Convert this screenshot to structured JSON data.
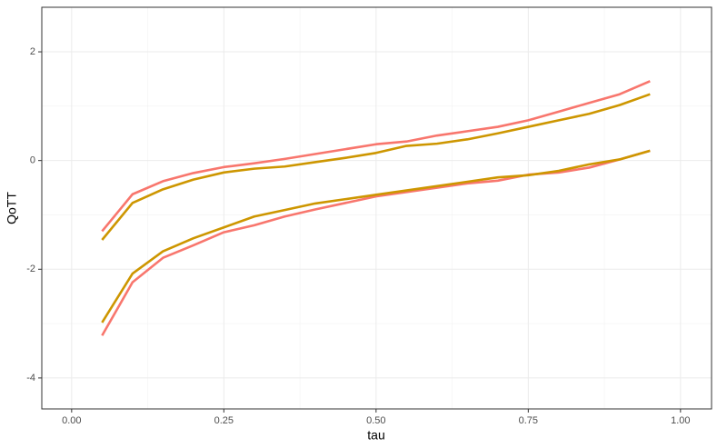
{
  "chart_data": {
    "type": "line",
    "x_label": "tau",
    "y_label": "QoTT",
    "x": [
      0.05,
      0.1,
      0.15,
      0.2,
      0.25,
      0.3,
      0.35,
      0.4,
      0.45,
      0.5,
      0.55,
      0.6,
      0.65,
      0.7,
      0.75,
      0.8,
      0.85,
      0.9,
      0.95
    ],
    "series": [
      {
        "color": "#F8766D",
        "values": [
          -1.3,
          -0.62,
          -0.38,
          -0.23,
          -0.12,
          -0.05,
          0.03,
          0.12,
          0.21,
          0.3,
          0.35,
          0.46,
          0.54,
          0.62,
          0.74,
          0.9,
          1.06,
          1.22,
          1.46
        ]
      },
      {
        "color": "#CD9600",
        "values": [
          -1.46,
          -0.78,
          -0.53,
          -0.35,
          -0.22,
          -0.15,
          -0.11,
          -0.03,
          0.05,
          0.14,
          0.27,
          0.31,
          0.39,
          0.5,
          0.62,
          0.74,
          0.86,
          1.02,
          1.22
        ]
      },
      {
        "color": "#F8766D",
        "values": [
          -3.22,
          -2.24,
          -1.79,
          -1.56,
          -1.32,
          -1.19,
          -1.03,
          -0.9,
          -0.78,
          -0.66,
          -0.58,
          -0.5,
          -0.42,
          -0.37,
          -0.26,
          -0.22,
          -0.13,
          0.02,
          0.18
        ]
      },
      {
        "color": "#CD9600",
        "values": [
          -2.98,
          -2.08,
          -1.67,
          -1.43,
          -1.23,
          -1.03,
          -0.91,
          -0.79,
          -0.71,
          -0.63,
          -0.55,
          -0.47,
          -0.39,
          -0.31,
          -0.27,
          -0.19,
          -0.07,
          0.02,
          0.18
        ]
      }
    ],
    "xlim": [
      -0.049,
      1.051
    ],
    "xticks": [
      {
        "value": 0,
        "label": "0.00"
      },
      {
        "value": 0.25,
        "label": "0.25"
      },
      {
        "value": 0.5,
        "label": "0.50"
      },
      {
        "value": 0.75,
        "label": "0.75"
      },
      {
        "value": 1,
        "label": "1.00"
      }
    ],
    "ylim": [
      -4.57,
      2.82
    ],
    "yticks": [
      -4,
      -2,
      0,
      2
    ],
    "grid": true
  }
}
